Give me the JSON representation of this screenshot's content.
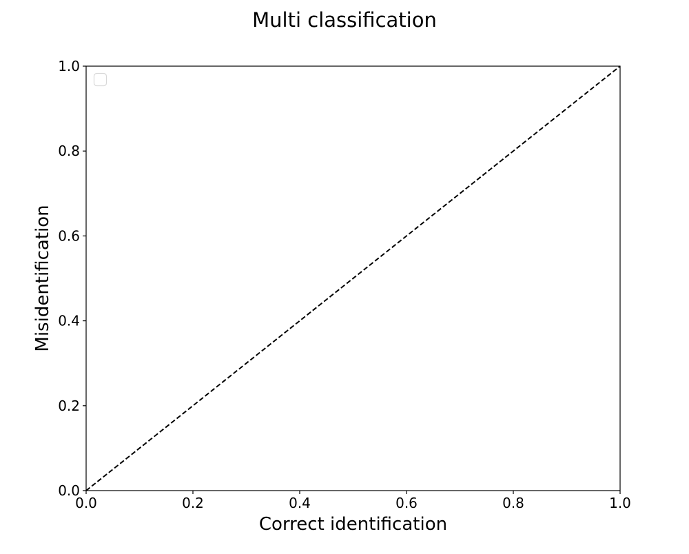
{
  "chart_data": {
    "type": "line",
    "title": "Multi classification",
    "xlabel": "Correct identification",
    "ylabel": "Misidentification",
    "xlim": [
      0.0,
      1.0
    ],
    "ylim": [
      0.0,
      1.0
    ],
    "x_ticks": [
      "0.0",
      "0.2",
      "0.4",
      "0.6",
      "0.8",
      "1.0"
    ],
    "y_ticks": [
      "0.0",
      "0.2",
      "0.4",
      "0.6",
      "0.8",
      "1.0"
    ],
    "grid": false,
    "legend": {
      "placement": "top-left",
      "entries": []
    },
    "series": [
      {
        "style": "dashed",
        "color": "#000000",
        "x": [
          0.0,
          1.0
        ],
        "y": [
          0.0,
          1.0
        ]
      }
    ]
  }
}
